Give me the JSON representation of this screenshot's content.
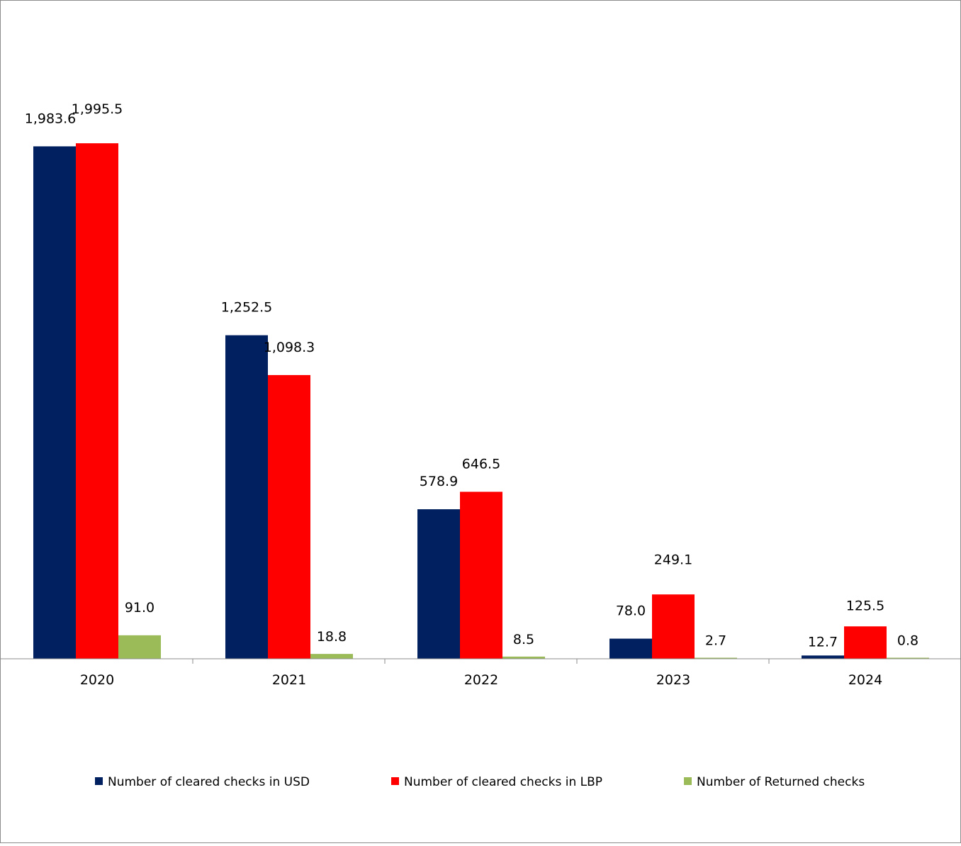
{
  "chart_data": {
    "type": "bar",
    "categories": [
      "2020",
      "2021",
      "2022",
      "2023",
      "2024"
    ],
    "series": [
      {
        "name": "Number of cleared checks in USD",
        "color": "#002060",
        "values": [
          1983.6,
          1252.5,
          578.9,
          78.0,
          12.7
        ],
        "labels": [
          "1,983.6",
          "1,252.5",
          "578.9",
          "78.0",
          "12.7"
        ]
      },
      {
        "name": "Number of cleared checks in LBP",
        "color": "#ff0000",
        "values": [
          1995.5,
          1098.3,
          646.5,
          249.1,
          125.5
        ],
        "labels": [
          "1,995.5",
          "1,098.3",
          "646.5",
          "249.1",
          "125.5"
        ]
      },
      {
        "name": "Number of Returned checks",
        "color": "#9bbb59",
        "values": [
          91.0,
          18.8,
          8.5,
          2.7,
          0.8
        ],
        "labels": [
          "91.0",
          "18.8",
          "8.5",
          "2.7",
          "0.8"
        ]
      }
    ],
    "title": "",
    "xlabel": "",
    "ylabel": "",
    "ylim": [
      0,
      2200
    ],
    "grid": false,
    "legend": "bottom"
  }
}
